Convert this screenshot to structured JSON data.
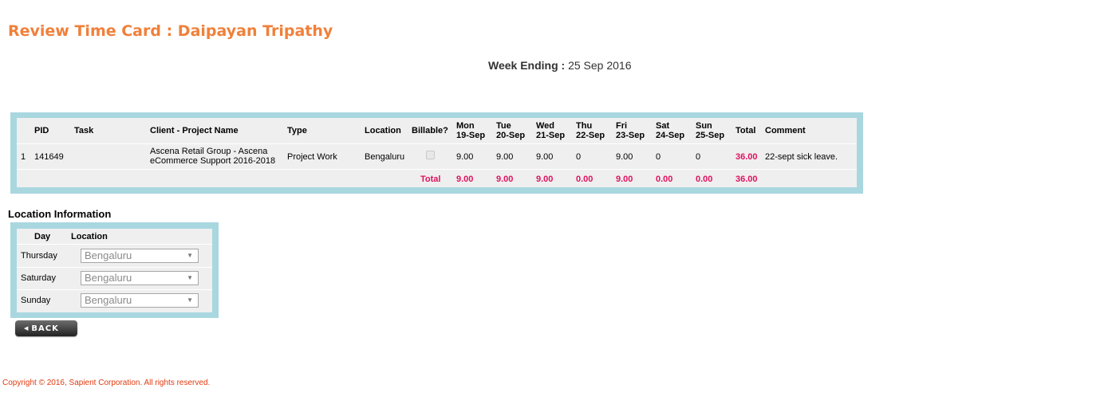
{
  "page": {
    "title": "Review Time Card : Daipayan Tripathy",
    "week_ending_label": "Week Ending :",
    "week_ending_value": " 25 Sep 2016"
  },
  "timecard": {
    "headers": {
      "pid": "PID",
      "task": "Task",
      "client_project": "Client - Project Name",
      "type": "Type",
      "location": "Location",
      "billable": "Billable?",
      "days": [
        {
          "day": "Mon",
          "date": "19-Sep"
        },
        {
          "day": "Tue",
          "date": "20-Sep"
        },
        {
          "day": "Wed",
          "date": "21-Sep"
        },
        {
          "day": "Thu",
          "date": "22-Sep"
        },
        {
          "day": "Fri",
          "date": "23-Sep"
        },
        {
          "day": "Sat",
          "date": "24-Sep"
        },
        {
          "day": "Sun",
          "date": "25-Sep"
        }
      ],
      "total": "Total",
      "comment": "Comment"
    },
    "rows": [
      {
        "index": "1",
        "pid": "141649",
        "task": "",
        "client_project_line1": "Ascena Retail Group - Ascena",
        "client_project_line2": "eCommerce Support 2016-2018",
        "type": "Project Work",
        "location": "Bengaluru",
        "billable": false,
        "hours": [
          "9.00",
          "9.00",
          "9.00",
          "0",
          "9.00",
          "0",
          "0"
        ],
        "total": "36.00",
        "comment": "22-sept sick leave."
      }
    ],
    "totals": {
      "label": "Total",
      "hours": [
        "9.00",
        "9.00",
        "9.00",
        "0.00",
        "9.00",
        "0.00",
        "0.00"
      ],
      "grand_total": "36.00"
    }
  },
  "location_info": {
    "title": "Location Information",
    "headers": {
      "day": "Day",
      "location": "Location"
    },
    "rows": [
      {
        "day": "Thursday",
        "location": "Bengaluru"
      },
      {
        "day": "Saturday",
        "location": "Bengaluru"
      },
      {
        "day": "Sunday",
        "location": "Bengaluru"
      }
    ]
  },
  "actions": {
    "back_label": "BACK",
    "back_icon": "triangle-left-icon"
  },
  "footer": {
    "copyright": "Copyright © 2016, Sapient Corporation. All rights reserved."
  },
  "colors": {
    "title": "#f0803a",
    "table_border": "#a9d7e0",
    "table_bg": "#efefef",
    "total_red": "#e0115f",
    "copyright": "#e03a10"
  }
}
